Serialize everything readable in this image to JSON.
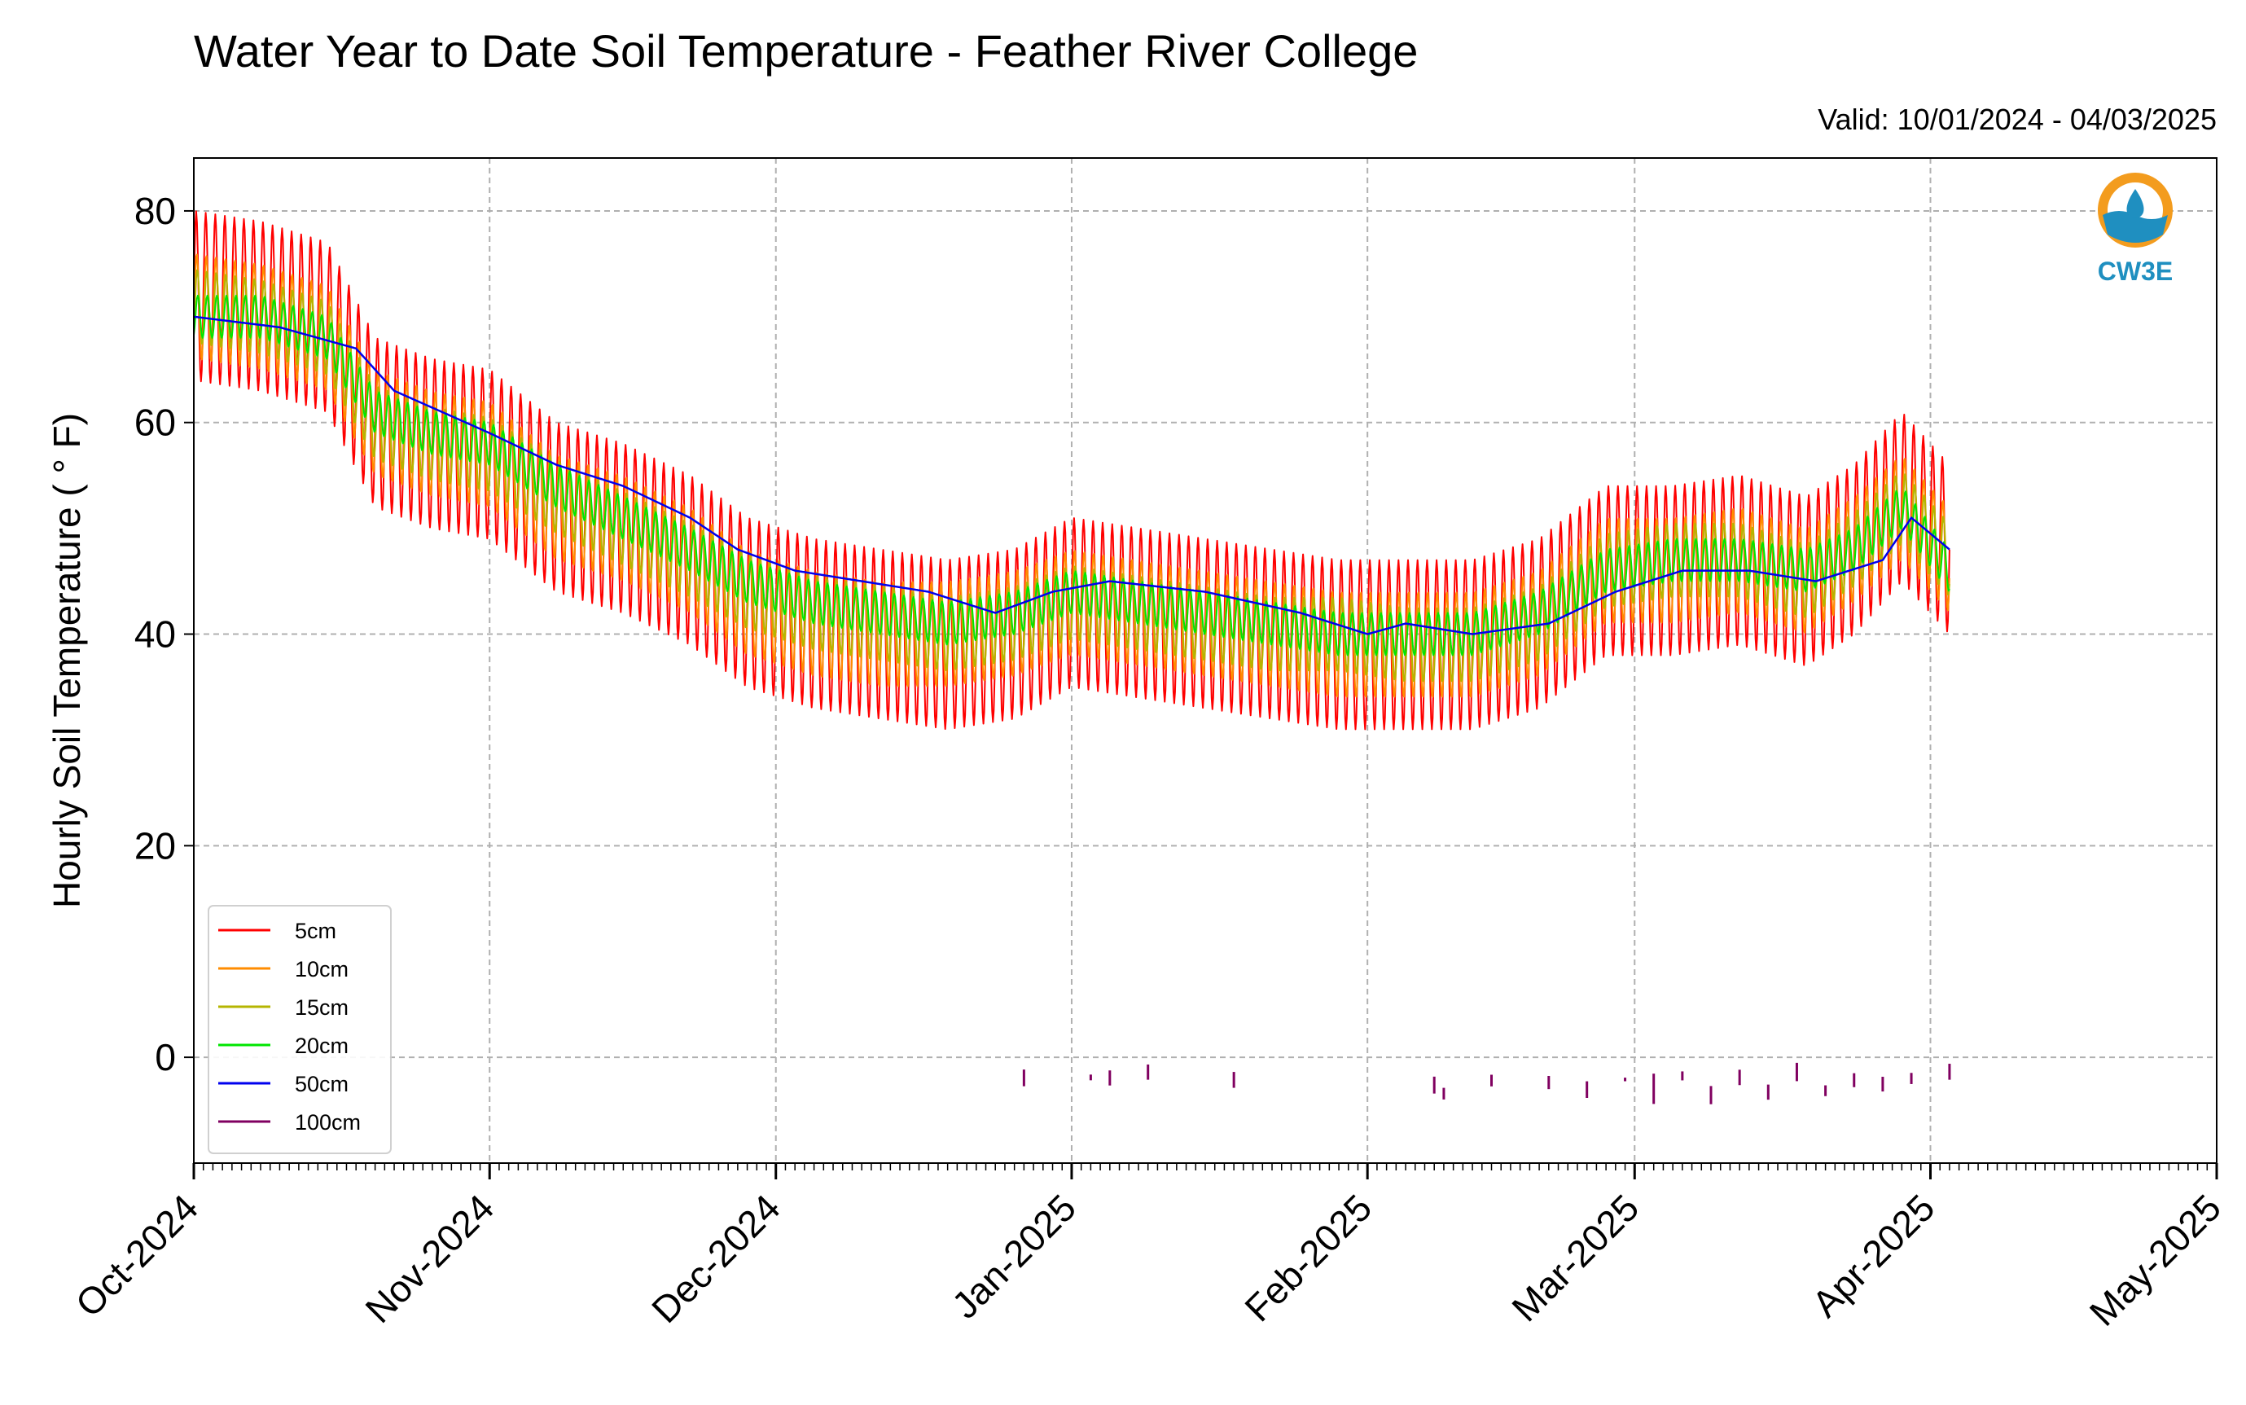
{
  "valid_range": "Valid: 10/01/2024 - 04/03/2025",
  "logo": {
    "text": "CW3E",
    "icon": "water-drop-sun-icon",
    "colors": {
      "sun": "#f39c1e",
      "water": "#1f8fc0"
    }
  },
  "chart_data": {
    "type": "line",
    "title": "Water Year to Date Soil Temperature - Feather River College",
    "ylabel": "Hourly Soil Temperature ( ° F)",
    "xlabel": "",
    "ylim": [
      -10,
      85
    ],
    "xlim": [
      "2024-10-01",
      "2025-05-01"
    ],
    "grid": true,
    "legend_position": "lower-left",
    "yticks": [
      0,
      20,
      40,
      60,
      80
    ],
    "xticks": [
      {
        "date": "2024-10-01",
        "label": "Oct-2024"
      },
      {
        "date": "2024-11-01",
        "label": "Nov-2024"
      },
      {
        "date": "2024-12-01",
        "label": "Dec-2024"
      },
      {
        "date": "2025-01-01",
        "label": "Jan-2025"
      },
      {
        "date": "2025-02-01",
        "label": "Feb-2025"
      },
      {
        "date": "2025-03-01",
        "label": "Mar-2025"
      },
      {
        "date": "2025-04-01",
        "label": "Apr-2025"
      },
      {
        "date": "2025-05-01",
        "label": "May-2025"
      }
    ],
    "series": [
      {
        "name": "5cm",
        "color": "#ff0000",
        "amplitude": 8,
        "x": [
          "2024-10-01",
          "2024-10-08",
          "2024-10-15",
          "2024-10-20",
          "2024-10-26",
          "2024-11-01",
          "2024-11-08",
          "2024-11-15",
          "2024-11-22",
          "2024-11-28",
          "2024-12-05",
          "2024-12-12",
          "2024-12-19",
          "2024-12-26",
          "2025-01-01",
          "2025-01-08",
          "2025-01-15",
          "2025-01-22",
          "2025-01-29",
          "2025-02-05",
          "2025-02-12",
          "2025-02-19",
          "2025-02-26",
          "2025-03-05",
          "2025-03-12",
          "2025-03-19",
          "2025-03-24",
          "2025-03-29",
          "2025-04-03"
        ],
        "y": [
          72,
          71,
          69,
          60,
          58,
          57,
          52,
          50,
          47,
          43,
          41,
          40,
          39,
          40,
          43,
          42,
          41,
          40,
          39,
          39,
          39,
          41,
          46,
          46,
          47,
          45,
          48,
          53,
          48
        ]
      },
      {
        "name": "10cm",
        "color": "#ff8c00",
        "amplitude": 5,
        "x": [
          "2024-10-01",
          "2024-10-08",
          "2024-10-15",
          "2024-10-20",
          "2024-10-26",
          "2024-11-01",
          "2024-11-08",
          "2024-11-15",
          "2024-11-22",
          "2024-11-28",
          "2024-12-05",
          "2024-12-12",
          "2024-12-19",
          "2024-12-26",
          "2025-01-01",
          "2025-01-08",
          "2025-01-15",
          "2025-01-22",
          "2025-01-29",
          "2025-02-05",
          "2025-02-12",
          "2025-02-19",
          "2025-02-26",
          "2025-03-05",
          "2025-03-12",
          "2025-03-19",
          "2025-03-24",
          "2025-03-29",
          "2025-04-03"
        ],
        "y": [
          71,
          70,
          68,
          60,
          58,
          57,
          52,
          50,
          47,
          43,
          41,
          40,
          40,
          41,
          43,
          42,
          41,
          40,
          39,
          39,
          39,
          41,
          46,
          46,
          47,
          45,
          48,
          52,
          47
        ]
      },
      {
        "name": "15cm",
        "color": "#b5b500",
        "amplitude": 3.5,
        "x": [
          "2024-10-01",
          "2024-10-08",
          "2024-10-15",
          "2024-10-20",
          "2024-10-26",
          "2024-11-01",
          "2024-11-08",
          "2024-11-15",
          "2024-11-22",
          "2024-11-28",
          "2024-12-05",
          "2024-12-12",
          "2024-12-19",
          "2024-12-26",
          "2025-01-01",
          "2025-01-08",
          "2025-01-15",
          "2025-01-22",
          "2025-01-29",
          "2025-02-05",
          "2025-02-12",
          "2025-02-19",
          "2025-02-26",
          "2025-03-05",
          "2025-03-12",
          "2025-03-19",
          "2025-03-24",
          "2025-03-29",
          "2025-04-03"
        ],
        "y": [
          71,
          70,
          68,
          60,
          58,
          57,
          53,
          50,
          47,
          44,
          42,
          41,
          40,
          41,
          43,
          42,
          41,
          40,
          40,
          39,
          39,
          41,
          46,
          47,
          47,
          45,
          48,
          52,
          47
        ]
      },
      {
        "name": "20cm",
        "color": "#00e600",
        "amplitude": 2,
        "x": [
          "2024-10-01",
          "2024-10-08",
          "2024-10-15",
          "2024-10-20",
          "2024-10-26",
          "2024-11-01",
          "2024-11-08",
          "2024-11-15",
          "2024-11-22",
          "2024-11-28",
          "2024-12-05",
          "2024-12-12",
          "2024-12-19",
          "2024-12-26",
          "2025-01-01",
          "2025-01-08",
          "2025-01-15",
          "2025-01-22",
          "2025-01-29",
          "2025-02-05",
          "2025-02-12",
          "2025-02-19",
          "2025-02-26",
          "2025-03-05",
          "2025-03-12",
          "2025-03-19",
          "2025-03-24",
          "2025-03-29",
          "2025-04-03"
        ],
        "y": [
          70,
          70,
          68,
          61,
          59,
          58,
          54,
          51,
          48,
          45,
          43,
          42,
          41,
          42,
          44,
          43,
          42,
          41,
          40,
          40,
          40,
          42,
          46,
          47,
          47,
          46,
          48,
          52,
          46
        ]
      },
      {
        "name": "50cm",
        "color": "#0000ee",
        "amplitude": 0,
        "x": [
          "2024-10-01",
          "2024-10-10",
          "2024-10-18",
          "2024-10-22",
          "2024-10-27",
          "2024-11-01",
          "2024-11-08",
          "2024-11-15",
          "2024-11-22",
          "2024-11-27",
          "2024-12-03",
          "2024-12-10",
          "2024-12-17",
          "2024-12-24",
          "2024-12-30",
          "2025-01-05",
          "2025-01-15",
          "2025-01-25",
          "2025-02-01",
          "2025-02-05",
          "2025-02-12",
          "2025-02-20",
          "2025-02-27",
          "2025-03-06",
          "2025-03-13",
          "2025-03-20",
          "2025-03-27",
          "2025-03-30",
          "2025-04-03"
        ],
        "y": [
          70,
          69,
          67,
          63,
          61,
          59,
          56,
          54,
          51,
          48,
          46,
          45,
          44,
          42,
          44,
          45,
          44,
          42,
          40,
          41,
          40,
          41,
          44,
          46,
          46,
          45,
          47,
          51,
          48
        ]
      },
      {
        "name": "100cm",
        "color": "#800060",
        "amplitude": 1.5,
        "x": [
          "2024-12-27",
          "2025-01-03",
          "2025-01-05",
          "2025-01-09",
          "2025-01-18",
          "2025-02-08",
          "2025-02-09",
          "2025-02-14",
          "2025-02-20",
          "2025-02-24",
          "2025-02-28",
          "2025-03-03",
          "2025-03-06",
          "2025-03-09",
          "2025-03-12",
          "2025-03-15",
          "2025-03-18",
          "2025-03-21",
          "2025-03-24",
          "2025-03-27",
          "2025-03-30",
          "2025-04-03"
        ],
        "y": [
          -2,
          -2,
          -2,
          -2,
          -2,
          -3,
          -3,
          -2,
          -2,
          -3,
          -2,
          -3,
          -2,
          -3,
          -2,
          -3,
          -2,
          -3,
          -2,
          -3,
          -2,
          -2
        ]
      }
    ]
  }
}
